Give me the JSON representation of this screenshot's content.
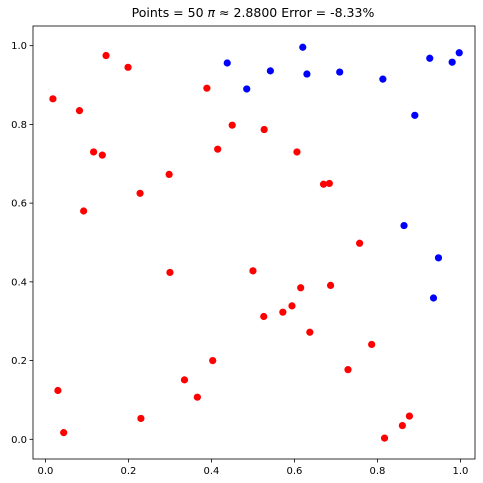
{
  "chart_data": {
    "type": "scatter",
    "title": {
      "prefix": "Points = 50",
      "pi_symbol": "π",
      "approx": "≈",
      "estimate": "2.8800",
      "error": "Error = -8.33%"
    },
    "xlabel": "",
    "ylabel": "",
    "xlim": [
      -0.03,
      1.035
    ],
    "ylim": [
      -0.05,
      1.05
    ],
    "xticks": [
      0.0,
      0.2,
      0.4,
      0.6,
      0.8,
      1.0
    ],
    "xtick_labels": [
      "0.0",
      "0.2",
      "0.4",
      "0.6",
      "0.8",
      "1.0"
    ],
    "yticks": [
      0.0,
      0.2,
      0.4,
      0.6,
      0.8,
      1.0
    ],
    "ytick_labels": [
      "0.0",
      "0.2",
      "0.4",
      "0.6",
      "0.8",
      "1.0"
    ],
    "grid": false,
    "colors": {
      "inside": "#ff0000",
      "outside": "#0000ff"
    },
    "series": [
      {
        "color": "#ff0000",
        "points": [
          [
            0.018,
            0.865
          ],
          [
            0.082,
            0.835
          ],
          [
            0.146,
            0.975
          ],
          [
            0.199,
            0.945
          ],
          [
            0.116,
            0.73
          ],
          [
            0.137,
            0.722
          ],
          [
            0.228,
            0.625
          ],
          [
            0.092,
            0.58
          ],
          [
            0.298,
            0.673
          ],
          [
            0.389,
            0.892
          ],
          [
            0.45,
            0.798
          ],
          [
            0.415,
            0.737
          ],
          [
            0.527,
            0.787
          ],
          [
            0.606,
            0.73
          ],
          [
            0.67,
            0.648
          ],
          [
            0.684,
            0.65
          ],
          [
            0.757,
            0.498
          ],
          [
            0.3,
            0.424
          ],
          [
            0.5,
            0.428
          ],
          [
            0.615,
            0.385
          ],
          [
            0.687,
            0.391
          ],
          [
            0.526,
            0.312
          ],
          [
            0.572,
            0.323
          ],
          [
            0.594,
            0.339
          ],
          [
            0.637,
            0.272
          ],
          [
            0.786,
            0.241
          ],
          [
            0.729,
            0.177
          ],
          [
            0.403,
            0.2
          ],
          [
            0.335,
            0.151
          ],
          [
            0.366,
            0.107
          ],
          [
            0.23,
            0.053
          ],
          [
            0.03,
            0.124
          ],
          [
            0.044,
            0.017
          ],
          [
            0.817,
            0.003
          ],
          [
            0.86,
            0.035
          ],
          [
            0.877,
            0.059
          ]
        ]
      },
      {
        "color": "#0000ff",
        "points": [
          [
            0.438,
            0.956
          ],
          [
            0.485,
            0.89
          ],
          [
            0.542,
            0.936
          ],
          [
            0.62,
            0.996
          ],
          [
            0.63,
            0.928
          ],
          [
            0.709,
            0.933
          ],
          [
            0.813,
            0.915
          ],
          [
            0.926,
            0.968
          ],
          [
            0.98,
            0.958
          ],
          [
            0.997,
            0.982
          ],
          [
            0.89,
            0.823
          ],
          [
            0.864,
            0.543
          ],
          [
            0.947,
            0.461
          ],
          [
            0.935,
            0.359
          ]
        ]
      }
    ]
  }
}
